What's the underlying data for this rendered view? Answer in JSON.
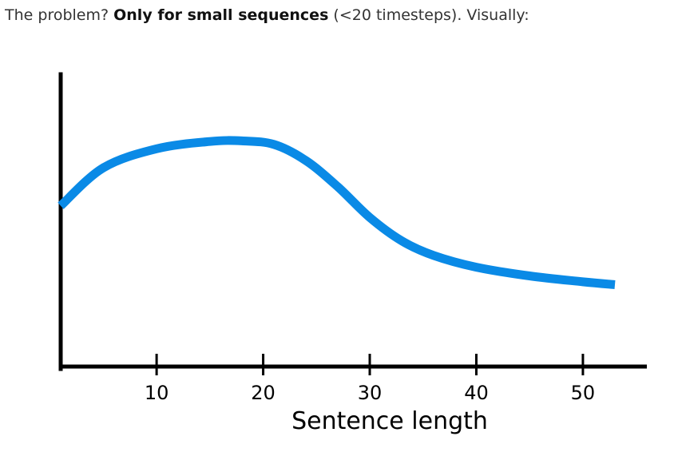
{
  "caption": {
    "prefix": "The problem? ",
    "emphasis": "Only for small sequences",
    "suffix": " (<20 timesteps). Visually:"
  },
  "chart_data": {
    "type": "line",
    "title": "",
    "xlabel": "Sentence length",
    "ylabel": "",
    "xlim": [
      1,
      56
    ],
    "ylim": [
      0,
      10
    ],
    "xticks": [
      10,
      20,
      30,
      40,
      50
    ],
    "grid": false,
    "series": [
      {
        "color": "#0a8ae6",
        "x": [
          1,
          5,
          10,
          15,
          18,
          21,
          24,
          27,
          30,
          33,
          36,
          40,
          45,
          50,
          53
        ],
        "y": [
          5.5,
          6.8,
          7.45,
          7.7,
          7.72,
          7.6,
          7.05,
          6.15,
          5.1,
          4.3,
          3.8,
          3.4,
          3.1,
          2.9,
          2.8
        ]
      }
    ]
  }
}
